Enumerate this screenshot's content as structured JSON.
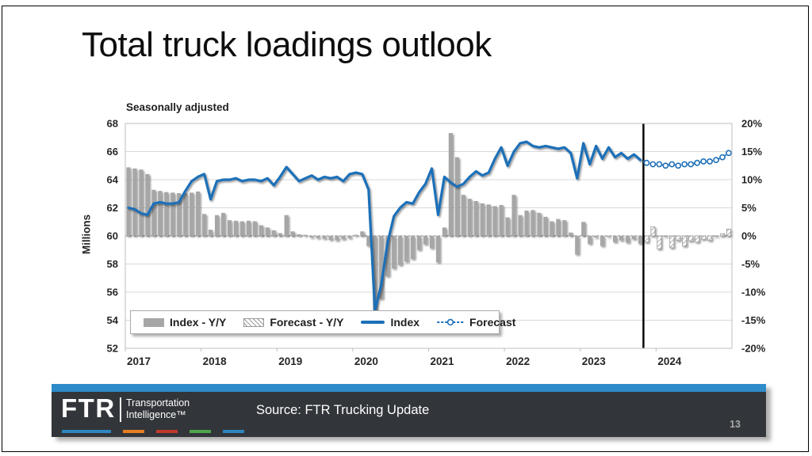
{
  "slide": {
    "title": "Total truck loadings outlook",
    "page_number": "13"
  },
  "chart": {
    "subtitle": "Seasonally adjusted",
    "y_left_label": "Millions",
    "legend": [
      {
        "label": "Index - Y/Y",
        "swatch": "bar-solid-gray"
      },
      {
        "label": "Forecast - Y/Y",
        "swatch": "bar-hatched"
      },
      {
        "label": "Index",
        "swatch": "line-solid-blue"
      },
      {
        "label": "Forecast",
        "swatch": "line-dotted-circle-blue"
      }
    ]
  },
  "chart_data": {
    "type": "bar",
    "subtype": "combo-bar-line-dual-axis",
    "title": "Seasonally adjusted",
    "xlabel": "",
    "ylabel_left": "Millions",
    "x_years": [
      2017,
      2018,
      2019,
      2020,
      2021,
      2022,
      2023,
      2024
    ],
    "months_total": 96,
    "y_left": {
      "min": 52,
      "max": 68,
      "ticks": [
        68,
        66,
        64,
        62,
        60,
        58,
        56,
        54,
        52
      ]
    },
    "y_right": {
      "min": -20,
      "max": 20,
      "ticks": [
        "20%",
        "15%",
        "10%",
        "5%",
        "0%",
        "-5%",
        "-10%",
        "-15%",
        "-20%"
      ]
    },
    "axis_note": "right axis 0% aligns with left axis 60; 5% equals 2 million units",
    "forecast_start": "2023-11",
    "forecast_divider": true,
    "grid": true,
    "legend_position": "bottom-left-inset",
    "series": [
      {
        "name": "Index - Y/Y",
        "type": "bar",
        "axis": "right",
        "unit": "%",
        "start_month_index": 0,
        "values": [
          12.2,
          12.0,
          11.8,
          11.0,
          8.2,
          8.0,
          7.8,
          7.7,
          7.6,
          7.6,
          7.7,
          7.9,
          3.9,
          1.1,
          3.7,
          4.1,
          2.8,
          2.7,
          2.6,
          2.7,
          2.6,
          1.9,
          1.5,
          1.0,
          0.5,
          3.7,
          0.8,
          0.3,
          0.2,
          -0.3,
          -0.4,
          -0.5,
          -0.7,
          -0.8,
          -0.6,
          -0.4,
          0.2,
          0.8,
          -1.8,
          -13.5,
          -11.2,
          -7.2,
          -5.8,
          -5.2,
          -4.6,
          -4.1,
          -2.5,
          -1.5,
          -2.2,
          -4.7,
          1.5,
          18.3,
          14.0,
          7.3,
          6.6,
          6.2,
          5.8,
          5.6,
          5.3,
          5.5,
          3.3,
          7.3,
          3.7,
          4.5,
          4.6,
          4.1,
          3.4,
          2.6,
          3.0,
          2.8,
          0.6,
          -3.3,
          2.5,
          -1.4,
          -0.3,
          -1.8,
          -0.2,
          -1.1,
          -0.8,
          -1.2,
          -0.6,
          -1.4
        ]
      },
      {
        "name": "Forecast - Y/Y",
        "type": "bar",
        "style": "hatched",
        "axis": "right",
        "unit": "%",
        "start_month_index": 82,
        "values": [
          -1.1,
          1.6,
          -2.3,
          0.0,
          -2.1,
          -0.8,
          -1.8,
          -0.9,
          -1.1,
          -0.6,
          -0.8,
          0.0,
          0.4,
          1.2
        ]
      },
      {
        "name": "Index",
        "type": "line",
        "axis": "left",
        "unit": "millions",
        "start_month_index": 0,
        "values": [
          62.0,
          61.9,
          61.6,
          61.5,
          62.3,
          62.4,
          62.3,
          62.3,
          62.4,
          63.2,
          63.9,
          64.2,
          64.4,
          62.6,
          63.9,
          64.0,
          64.0,
          64.1,
          63.9,
          64.0,
          64.0,
          63.9,
          64.1,
          63.6,
          64.2,
          64.9,
          64.4,
          63.9,
          64.1,
          64.3,
          64.0,
          64.2,
          64.1,
          64.2,
          63.9,
          64.4,
          64.5,
          64.4,
          63.3,
          54.7,
          56.5,
          59.5,
          61.4,
          62.0,
          62.4,
          62.3,
          63.1,
          63.7,
          64.8,
          61.5,
          64.2,
          63.8,
          63.5,
          63.7,
          64.2,
          64.6,
          64.3,
          64.5,
          65.5,
          66.3,
          65.0,
          66.0,
          66.6,
          66.7,
          66.4,
          66.3,
          66.4,
          66.3,
          66.2,
          66.3,
          65.9,
          64.1,
          66.6,
          65.1,
          66.4,
          65.5,
          66.3,
          65.6,
          65.9,
          65.5,
          65.8,
          65.4
        ]
      },
      {
        "name": "Forecast",
        "type": "line",
        "style": "dotted-circle",
        "axis": "left",
        "unit": "millions",
        "start_month_index": 82,
        "values": [
          65.2,
          65.1,
          65.1,
          65.0,
          65.1,
          65.0,
          65.1,
          65.1,
          65.2,
          65.3,
          65.3,
          65.4,
          65.6,
          65.9
        ]
      }
    ],
    "colors": {
      "bar": "#a6a6a6",
      "hatch": "#9a9a9a",
      "line": "#1d6fb8",
      "grid": "#d9d9d9",
      "frame": "#bfbfbf",
      "zero_dash": "#7a7a7a",
      "divider": "#000000",
      "tick_text": "#262626"
    }
  },
  "footer": {
    "logo_text": "FTR",
    "logo_line1": "Transportation",
    "logo_line2": "Intelligence™",
    "source": "Source: FTR Trucking Update",
    "colors": {
      "strip": "#2e8bc9",
      "background": "#323539",
      "brand_dashes": [
        "#2e86c1",
        "#e67e22",
        "#c0392b",
        "#4ea64b",
        "#2e86c1"
      ]
    }
  }
}
